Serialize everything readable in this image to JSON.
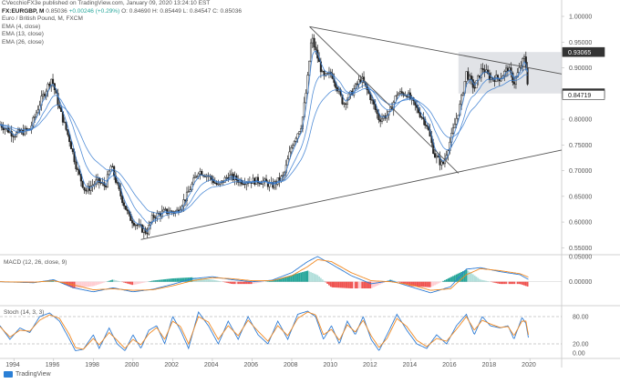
{
  "header": {
    "publisher": "CVecchioFX3e published on TradingView.com, January 09, 2020 13:24:10 EST",
    "symbol": "FX:EURGBP, M",
    "last": "0.85036",
    "change": "+0.00246 (+0.29%)",
    "ohlc": "O: 0.84690 H: 0.85449 L: 0.84547 C: 0.85036",
    "title": "Euro / British Pound, M, FXCM",
    "ema1": "EMA (4, close)",
    "ema2": "EMA (13, close)",
    "ema3": "EMA (26, close)",
    "macd_label": "MACD (12, 26, close, 9)",
    "stoch_label": "Stoch (14, 3, 3)"
  },
  "footer": {
    "brand": "TradingView"
  },
  "colors": {
    "up": "#222222",
    "down": "#222222",
    "ema": "#3d7fd1",
    "trend": "#555555",
    "box": "#c8ccd4",
    "macd": "#2f7cd4",
    "signal": "#f08a24",
    "hist_pos": "#26a69a",
    "hist_pos_light": "#b2dfdb",
    "hist_neg": "#ef5350",
    "hist_neg_light": "#ffcdd2",
    "stoch_k": "#2f7cd4",
    "stoch_d": "#f08a24",
    "label_dark": "#333333",
    "label_white": "#ffffff"
  },
  "chart_data": [
    {
      "type": "candlestick",
      "title": "Euro / British Pound, M, FXCM",
      "series_names": [
        "EMA (4, close)",
        "EMA (13, close)",
        "EMA (26, close)"
      ],
      "xlim": [
        1993.3,
        2021.6
      ],
      "x_ticks": [
        "1994",
        "1996",
        "1998",
        "2000",
        "2002",
        "2004",
        "2006",
        "2008",
        "2010",
        "2012",
        "2014",
        "2016",
        "2018",
        "2020"
      ],
      "ylim": [
        0.54,
        1.0
      ],
      "y_ticks": [
        "1.00000",
        "0.95000",
        "0.90000",
        "0.85000",
        "0.80000",
        "0.75000",
        "0.70000",
        "0.65000",
        "0.60000",
        "0.55000"
      ],
      "price_labels": [
        {
          "value": 0.93065,
          "text": "0.93065",
          "style": "dark"
        },
        {
          "value": 0.85036,
          "text": "0.85036",
          "style": "dark"
        },
        {
          "value": 0.84719,
          "text": "0.84719",
          "style": "white"
        }
      ],
      "path": [
        [
          1993.3,
          0.79
        ],
        [
          1994.0,
          0.77
        ],
        [
          1994.8,
          0.78
        ],
        [
          1995.4,
          0.84
        ],
        [
          1995.9,
          0.88
        ],
        [
          1996.3,
          0.82
        ],
        [
          1996.8,
          0.76
        ],
        [
          1997.2,
          0.7
        ],
        [
          1997.6,
          0.66
        ],
        [
          1998.2,
          0.68
        ],
        [
          1998.6,
          0.67
        ],
        [
          1998.9,
          0.71
        ],
        [
          1999.3,
          0.66
        ],
        [
          1999.8,
          0.61
        ],
        [
          2000.3,
          0.59
        ],
        [
          2000.7,
          0.58
        ],
        [
          2001.0,
          0.61
        ],
        [
          2001.6,
          0.62
        ],
        [
          2002.2,
          0.62
        ],
        [
          2002.7,
          0.65
        ],
        [
          2003.3,
          0.7
        ],
        [
          2003.8,
          0.69
        ],
        [
          2004.3,
          0.67
        ],
        [
          2004.8,
          0.69
        ],
        [
          2005.4,
          0.68
        ],
        [
          2005.9,
          0.68
        ],
        [
          2006.5,
          0.68
        ],
        [
          2007.0,
          0.67
        ],
        [
          2007.6,
          0.69
        ],
        [
          2008.0,
          0.75
        ],
        [
          2008.5,
          0.79
        ],
        [
          2008.75,
          0.86
        ],
        [
          2009.0,
          0.96
        ],
        [
          2009.3,
          0.92
        ],
        [
          2009.6,
          0.88
        ],
        [
          2010.0,
          0.89
        ],
        [
          2010.3,
          0.86
        ],
        [
          2010.6,
          0.83
        ],
        [
          2011.0,
          0.85
        ],
        [
          2011.5,
          0.88
        ],
        [
          2012.0,
          0.84
        ],
        [
          2012.4,
          0.8
        ],
        [
          2012.9,
          0.81
        ],
        [
          2013.3,
          0.85
        ],
        [
          2013.8,
          0.85
        ],
        [
          2014.3,
          0.82
        ],
        [
          2014.8,
          0.79
        ],
        [
          2015.2,
          0.73
        ],
        [
          2015.6,
          0.71
        ],
        [
          2016.0,
          0.76
        ],
        [
          2016.5,
          0.83
        ],
        [
          2016.8,
          0.89
        ],
        [
          2017.2,
          0.86
        ],
        [
          2017.6,
          0.9
        ],
        [
          2018.0,
          0.88
        ],
        [
          2018.5,
          0.88
        ],
        [
          2018.9,
          0.9
        ],
        [
          2019.2,
          0.87
        ],
        [
          2019.6,
          0.91
        ],
        [
          2019.75,
          0.92
        ],
        [
          2019.95,
          0.85
        ]
      ],
      "trendlines": [
        {
          "from": [
            2000.4,
            0.566
          ],
          "to": [
            2021.6,
            0.74
          ]
        },
        {
          "from": [
            2008.9,
            0.98
          ],
          "to": [
            2021.6,
            0.888
          ]
        },
        {
          "from": [
            2008.9,
            0.98
          ],
          "to": [
            2016.4,
            0.695
          ]
        }
      ],
      "box": {
        "x": [
          2016.4,
          2021.6
        ],
        "y": [
          0.85,
          0.93065
        ]
      }
    },
    {
      "type": "histogram+line",
      "title": "MACD (12, 26, close, 9)",
      "ylim": [
        -0.015,
        0.05
      ],
      "y_ticks": [
        "0.05000",
        "0.00000"
      ],
      "macd": [
        [
          1993.3,
          0.0
        ],
        [
          1995.0,
          -0.002
        ],
        [
          1996.0,
          0.004
        ],
        [
          1997.0,
          -0.012
        ],
        [
          1998.0,
          -0.02
        ],
        [
          1999.0,
          -0.012
        ],
        [
          2000.0,
          -0.02
        ],
        [
          2001.0,
          -0.015
        ],
        [
          2002.0,
          -0.005
        ],
        [
          2003.0,
          0.006
        ],
        [
          2004.0,
          0.01
        ],
        [
          2005.0,
          0.004
        ],
        [
          2006.0,
          0.0
        ],
        [
          2007.0,
          0.003
        ],
        [
          2008.0,
          0.018
        ],
        [
          2008.8,
          0.04
        ],
        [
          2009.3,
          0.05
        ],
        [
          2010.0,
          0.035
        ],
        [
          2011.0,
          0.012
        ],
        [
          2012.0,
          -0.004
        ],
        [
          2013.0,
          0.002
        ],
        [
          2014.0,
          -0.01
        ],
        [
          2015.0,
          -0.022
        ],
        [
          2016.0,
          -0.01
        ],
        [
          2016.8,
          0.025
        ],
        [
          2017.5,
          0.028
        ],
        [
          2018.5,
          0.02
        ],
        [
          2019.5,
          0.014
        ],
        [
          2020.0,
          0.003
        ]
      ],
      "signal": [
        [
          1993.3,
          0.0
        ],
        [
          1995.0,
          -0.001
        ],
        [
          1996.0,
          0.002
        ],
        [
          1997.0,
          -0.006
        ],
        [
          1998.0,
          -0.016
        ],
        [
          1999.0,
          -0.014
        ],
        [
          2000.0,
          -0.017
        ],
        [
          2001.0,
          -0.016
        ],
        [
          2002.0,
          -0.008
        ],
        [
          2003.0,
          0.002
        ],
        [
          2004.0,
          0.008
        ],
        [
          2005.0,
          0.006
        ],
        [
          2006.0,
          0.002
        ],
        [
          2007.0,
          0.002
        ],
        [
          2008.0,
          0.012
        ],
        [
          2008.8,
          0.03
        ],
        [
          2009.3,
          0.044
        ],
        [
          2010.0,
          0.04
        ],
        [
          2011.0,
          0.018
        ],
        [
          2012.0,
          0.002
        ],
        [
          2013.0,
          0.0
        ],
        [
          2014.0,
          -0.006
        ],
        [
          2015.0,
          -0.017
        ],
        [
          2016.0,
          -0.014
        ],
        [
          2016.8,
          0.014
        ],
        [
          2017.5,
          0.026
        ],
        [
          2018.5,
          0.022
        ],
        [
          2019.5,
          0.016
        ],
        [
          2020.0,
          0.008
        ]
      ]
    },
    {
      "type": "line",
      "title": "Stoch (14, 3, 3)",
      "ylim": [
        -8,
        100
      ],
      "y_ticks": [
        "80.00",
        "20.00",
        "0.00"
      ],
      "bands": [
        80,
        20
      ],
      "k": [
        [
          1993.3,
          60
        ],
        [
          1993.8,
          30
        ],
        [
          1994.3,
          55
        ],
        [
          1994.8,
          45
        ],
        [
          1995.3,
          80
        ],
        [
          1995.8,
          88
        ],
        [
          1996.3,
          70
        ],
        [
          1996.8,
          30
        ],
        [
          1997.1,
          5
        ],
        [
          1997.5,
          8
        ],
        [
          1998.0,
          40
        ],
        [
          1998.3,
          10
        ],
        [
          1998.8,
          55
        ],
        [
          1999.2,
          20
        ],
        [
          1999.6,
          5
        ],
        [
          2000.0,
          40
        ],
        [
          2000.4,
          10
        ],
        [
          2000.8,
          50
        ],
        [
          2001.2,
          60
        ],
        [
          2001.6,
          20
        ],
        [
          2002.0,
          80
        ],
        [
          2002.4,
          50
        ],
        [
          2002.8,
          10
        ],
        [
          2003.3,
          90
        ],
        [
          2003.8,
          60
        ],
        [
          2004.3,
          20
        ],
        [
          2004.8,
          70
        ],
        [
          2005.3,
          30
        ],
        [
          2005.8,
          80
        ],
        [
          2006.3,
          40
        ],
        [
          2006.8,
          20
        ],
        [
          2007.3,
          70
        ],
        [
          2007.8,
          30
        ],
        [
          2008.3,
          85
        ],
        [
          2008.8,
          92
        ],
        [
          2009.2,
          80
        ],
        [
          2009.6,
          30
        ],
        [
          2010.0,
          60
        ],
        [
          2010.4,
          20
        ],
        [
          2010.8,
          70
        ],
        [
          2011.2,
          40
        ],
        [
          2011.6,
          80
        ],
        [
          2012.0,
          30
        ],
        [
          2012.4,
          5
        ],
        [
          2012.8,
          40
        ],
        [
          2013.3,
          85
        ],
        [
          2013.8,
          50
        ],
        [
          2014.3,
          20
        ],
        [
          2014.8,
          10
        ],
        [
          2015.3,
          40
        ],
        [
          2015.8,
          20
        ],
        [
          2016.3,
          60
        ],
        [
          2016.8,
          85
        ],
        [
          2017.2,
          40
        ],
        [
          2017.6,
          80
        ],
        [
          2018.0,
          60
        ],
        [
          2018.5,
          55
        ],
        [
          2018.9,
          60
        ],
        [
          2019.2,
          30
        ],
        [
          2019.6,
          78
        ],
        [
          2019.8,
          65
        ],
        [
          2020.0,
          15
        ]
      ],
      "d": [
        [
          1993.3,
          58
        ],
        [
          1993.8,
          35
        ],
        [
          1994.3,
          50
        ],
        [
          1994.8,
          48
        ],
        [
          1995.3,
          72
        ],
        [
          1995.8,
          84
        ],
        [
          1996.3,
          76
        ],
        [
          1996.8,
          40
        ],
        [
          1997.1,
          12
        ],
        [
          1997.5,
          8
        ],
        [
          1998.0,
          32
        ],
        [
          1998.3,
          18
        ],
        [
          1998.8,
          45
        ],
        [
          1999.2,
          28
        ],
        [
          1999.6,
          10
        ],
        [
          2000.0,
          30
        ],
        [
          2000.4,
          18
        ],
        [
          2000.8,
          42
        ],
        [
          2001.2,
          56
        ],
        [
          2001.6,
          30
        ],
        [
          2002.0,
          70
        ],
        [
          2002.4,
          58
        ],
        [
          2002.8,
          20
        ],
        [
          2003.3,
          80
        ],
        [
          2003.8,
          68
        ],
        [
          2004.3,
          30
        ],
        [
          2004.8,
          60
        ],
        [
          2005.3,
          38
        ],
        [
          2005.8,
          72
        ],
        [
          2006.3,
          48
        ],
        [
          2006.8,
          26
        ],
        [
          2007.3,
          60
        ],
        [
          2007.8,
          38
        ],
        [
          2008.3,
          76
        ],
        [
          2008.8,
          90
        ],
        [
          2009.2,
          84
        ],
        [
          2009.6,
          40
        ],
        [
          2010.0,
          52
        ],
        [
          2010.4,
          28
        ],
        [
          2010.8,
          62
        ],
        [
          2011.2,
          46
        ],
        [
          2011.6,
          72
        ],
        [
          2012.0,
          38
        ],
        [
          2012.4,
          12
        ],
        [
          2012.8,
          32
        ],
        [
          2013.3,
          76
        ],
        [
          2013.8,
          58
        ],
        [
          2014.3,
          28
        ],
        [
          2014.8,
          14
        ],
        [
          2015.3,
          32
        ],
        [
          2015.8,
          26
        ],
        [
          2016.3,
          52
        ],
        [
          2016.8,
          80
        ],
        [
          2017.2,
          50
        ],
        [
          2017.6,
          72
        ],
        [
          2018.0,
          64
        ],
        [
          2018.5,
          56
        ],
        [
          2018.9,
          58
        ],
        [
          2019.2,
          38
        ],
        [
          2019.6,
          70
        ],
        [
          2019.8,
          70
        ],
        [
          2020.0,
          22
        ]
      ]
    }
  ]
}
